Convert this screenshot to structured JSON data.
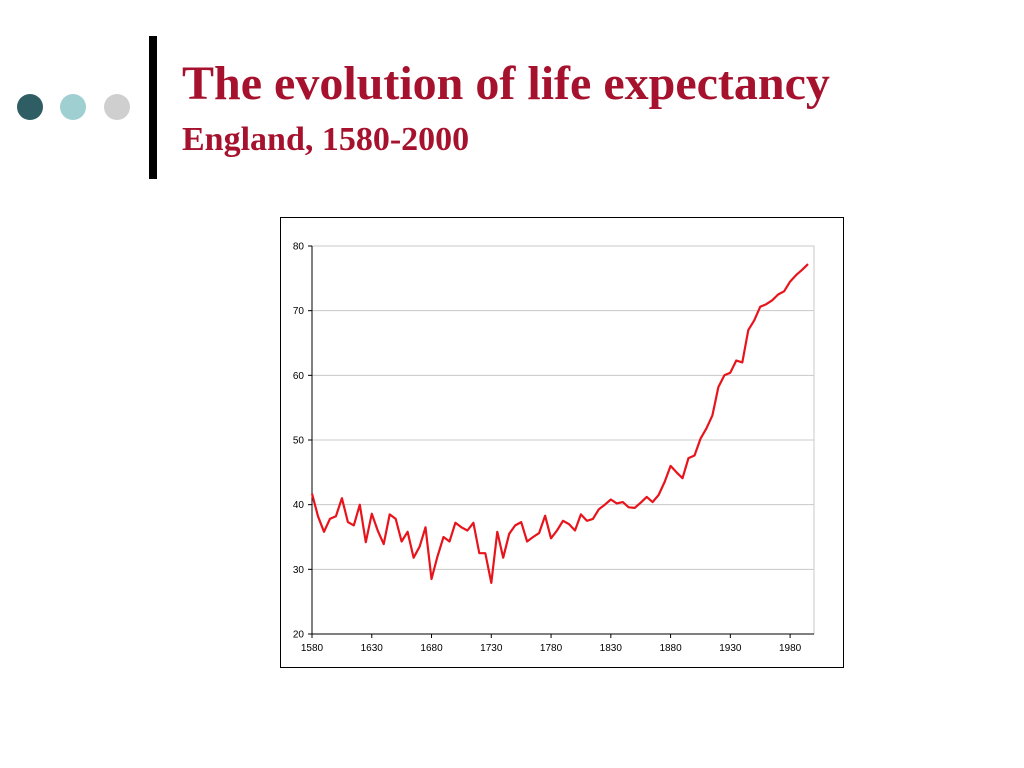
{
  "slide": {
    "title": "The evolution of life expectancy",
    "subtitle": "England, 1580-2000",
    "title_color": "#a6122d",
    "decor_dot_colors": [
      "#2e5e63",
      "#9fcfd1",
      "#cfcfcf"
    ]
  },
  "chart_data": {
    "type": "line",
    "xlim": [
      1580,
      2000
    ],
    "ylim": [
      20,
      80
    ],
    "xticks": [
      1580,
      1630,
      1680,
      1730,
      1780,
      1830,
      1880,
      1930,
      1980
    ],
    "yticks": [
      20,
      30,
      40,
      50,
      60,
      70,
      80
    ],
    "grid": "horizontal",
    "legend": "none",
    "line_color": "#e8141c",
    "series": [
      {
        "x": [
          1580,
          1585,
          1590,
          1595,
          1600,
          1605,
          1610,
          1615,
          1620,
          1625,
          1630,
          1635,
          1640,
          1645,
          1650,
          1655,
          1660,
          1665,
          1670,
          1675,
          1680,
          1685,
          1690,
          1695,
          1700,
          1705,
          1710,
          1715,
          1720,
          1725,
          1730,
          1735,
          1740,
          1745,
          1750,
          1755,
          1760,
          1765,
          1770,
          1775,
          1780,
          1785,
          1790,
          1795,
          1800,
          1805,
          1810,
          1815,
          1820,
          1825,
          1830,
          1835,
          1840,
          1845,
          1850,
          1855,
          1860,
          1865,
          1870,
          1875,
          1880,
          1885,
          1890,
          1895,
          1900,
          1905,
          1910,
          1915,
          1920,
          1925,
          1930,
          1935,
          1940,
          1945,
          1950,
          1955,
          1960,
          1965,
          1970,
          1975,
          1980,
          1985,
          1990,
          1995
        ],
        "y": [
          41.7,
          38.2,
          35.8,
          37.8,
          38.2,
          41.0,
          37.3,
          36.8,
          40.0,
          34.2,
          38.6,
          36.0,
          33.9,
          38.5,
          37.8,
          34.3,
          35.8,
          31.8,
          33.5,
          36.5,
          28.5,
          32.0,
          35.0,
          34.3,
          37.2,
          36.5,
          36.0,
          37.2,
          32.5,
          32.5,
          27.9,
          35.8,
          31.8,
          35.5,
          36.8,
          37.3,
          34.3,
          35.0,
          35.6,
          38.3,
          34.8,
          36.0,
          37.5,
          37.0,
          36.0,
          38.5,
          37.5,
          37.8,
          39.3,
          40.0,
          40.8,
          40.2,
          40.4,
          39.6,
          39.5,
          40.3,
          41.2,
          40.4,
          41.5,
          43.5,
          46.0,
          45.0,
          44.1,
          47.2,
          47.6,
          50.2,
          51.8,
          53.8,
          58.2,
          60.0,
          60.4,
          62.3,
          62.0,
          67.0,
          68.5,
          70.6,
          71.0,
          71.6,
          72.5,
          73.0,
          74.5,
          75.5,
          76.3,
          77.2
        ]
      }
    ]
  }
}
